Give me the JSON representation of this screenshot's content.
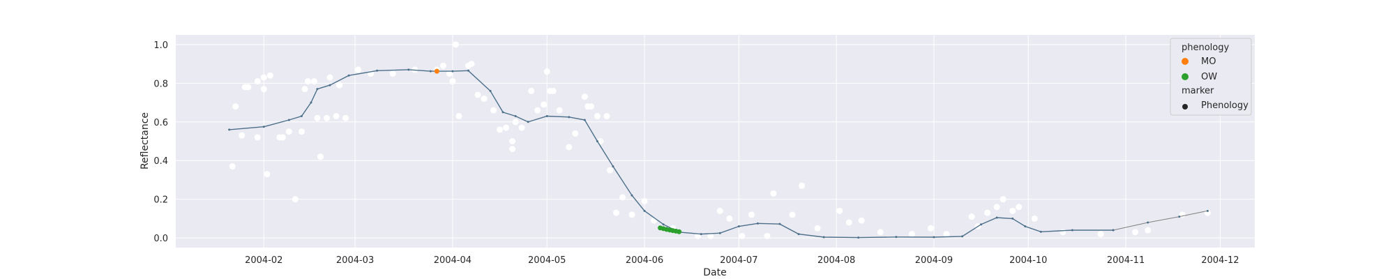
{
  "chart_data": {
    "type": "scatter",
    "title": "",
    "xlabel": "Date",
    "ylabel": "Reflectance",
    "x_is_date": true,
    "xlim": [
      "2004-01-04",
      "2004-12-12"
    ],
    "ylim": [
      -0.05,
      1.05
    ],
    "grid": true,
    "legend_position": "top-right",
    "colors": {
      "background": "#eaeaf2",
      "grid": "#ffffff",
      "smooth": "#4c6f8a",
      "line": "#7f7f7f",
      "observation": "#ffffff",
      "MO": "#ff7f0e",
      "OW": "#2ca02c",
      "marker": "#262626"
    },
    "x_ticks": [
      "2004-02-01",
      "2004-03-01",
      "2004-04-01",
      "2004-05-01",
      "2004-06-01",
      "2004-07-01",
      "2004-08-01",
      "2004-09-01",
      "2004-10-01",
      "2004-11-01",
      "2004-12-01"
    ],
    "x_tick_labels": [
      "2004-02",
      "2004-03",
      "2004-04",
      "2004-05",
      "2004-06",
      "2004-07",
      "2004-08",
      "2004-09",
      "2004-10",
      "2004-11",
      "2004-12"
    ],
    "y_ticks": [
      0.0,
      0.2,
      0.4,
      0.6,
      0.8,
      1.0
    ],
    "y_tick_labels": [
      "0.0",
      "0.2",
      "0.4",
      "0.6",
      "0.8",
      "1.0"
    ],
    "legend": {
      "title1": "phenology",
      "items1": [
        {
          "label": "MO",
          "color": "#ff7f0e"
        },
        {
          "label": "OW",
          "color": "#2ca02c"
        }
      ],
      "title2": "marker",
      "items2": [
        {
          "label": "Phenology",
          "color": "#262626"
        }
      ]
    },
    "smoothed_curve": {
      "x": [
        "2004-01-21",
        "2004-02-01",
        "2004-02-09",
        "2004-02-13",
        "2004-02-16",
        "2004-02-18",
        "2004-02-22",
        "2004-02-28",
        "2004-03-08",
        "2004-03-18",
        "2004-03-25",
        "2004-04-01",
        "2004-04-06",
        "2004-04-13",
        "2004-04-17",
        "2004-04-21",
        "2004-04-25",
        "2004-05-01",
        "2004-05-08",
        "2004-05-13",
        "2004-05-17",
        "2004-05-22",
        "2004-05-28",
        "2004-06-01",
        "2004-06-07",
        "2004-06-12",
        "2004-06-19",
        "2004-06-25",
        "2004-07-01",
        "2004-07-07",
        "2004-07-14",
        "2004-07-20",
        "2004-07-28",
        "2004-08-08",
        "2004-08-20",
        "2004-09-01",
        "2004-09-10",
        "2004-09-16",
        "2004-09-21",
        "2004-09-26",
        "2004-09-30",
        "2004-10-05",
        "2004-10-15",
        "2004-10-28"
      ],
      "y": [
        0.56,
        0.575,
        0.61,
        0.63,
        0.7,
        0.77,
        0.79,
        0.84,
        0.865,
        0.87,
        0.862,
        0.862,
        0.865,
        0.76,
        0.65,
        0.63,
        0.6,
        0.63,
        0.625,
        0.61,
        0.5,
        0.37,
        0.22,
        0.14,
        0.07,
        0.03,
        0.02,
        0.025,
        0.06,
        0.075,
        0.072,
        0.02,
        0.004,
        0.002,
        0.005,
        0.004,
        0.008,
        0.07,
        0.105,
        0.1,
        0.06,
        0.032,
        0.04,
        0.04
      ]
    },
    "sparse_line": {
      "x": [
        "2004-10-28",
        "2004-11-08",
        "2004-11-18",
        "2004-11-27"
      ],
      "y": [
        0.04,
        0.08,
        0.11,
        0.14
      ]
    },
    "observations": {
      "x": [
        "2004-01-22",
        "2004-01-23",
        "2004-01-25",
        "2004-01-26",
        "2004-01-27",
        "2004-01-30",
        "2004-01-30",
        "2004-02-01",
        "2004-02-01",
        "2004-02-02",
        "2004-02-03",
        "2004-02-06",
        "2004-02-07",
        "2004-02-09",
        "2004-02-11",
        "2004-02-13",
        "2004-02-14",
        "2004-02-15",
        "2004-02-17",
        "2004-02-18",
        "2004-02-19",
        "2004-02-21",
        "2004-02-22",
        "2004-02-24",
        "2004-02-25",
        "2004-02-27",
        "2004-03-02",
        "2004-03-06",
        "2004-03-13",
        "2004-03-20",
        "2004-03-27",
        "2004-03-29",
        "2004-03-31",
        "2004-04-01",
        "2004-04-02",
        "2004-04-03",
        "2004-04-06",
        "2004-04-07",
        "2004-04-09",
        "2004-04-11",
        "2004-04-14",
        "2004-04-16",
        "2004-04-18",
        "2004-04-20",
        "2004-04-20",
        "2004-04-21",
        "2004-04-23",
        "2004-04-26",
        "2004-04-28",
        "2004-04-30",
        "2004-05-01",
        "2004-05-02",
        "2004-05-03",
        "2004-05-05",
        "2004-05-08",
        "2004-05-10",
        "2004-05-13",
        "2004-05-14",
        "2004-05-15",
        "2004-05-17",
        "2004-05-18",
        "2004-05-20",
        "2004-05-21",
        "2004-05-23",
        "2004-05-25",
        "2004-05-28",
        "2004-06-01",
        "2004-06-04",
        "2004-06-10",
        "2004-06-18",
        "2004-06-22",
        "2004-06-25",
        "2004-06-28",
        "2004-07-02",
        "2004-07-05",
        "2004-07-10",
        "2004-07-12",
        "2004-07-18",
        "2004-07-21",
        "2004-07-26",
        "2004-08-02",
        "2004-08-05",
        "2004-08-09",
        "2004-08-15",
        "2004-08-25",
        "2004-08-31",
        "2004-09-05",
        "2004-09-13",
        "2004-09-15",
        "2004-09-18",
        "2004-09-21",
        "2004-09-23",
        "2004-09-26",
        "2004-09-28",
        "2004-10-03",
        "2004-10-12",
        "2004-10-24",
        "2004-11-04",
        "2004-11-08",
        "2004-11-19",
        "2004-11-27"
      ],
      "y": [
        0.37,
        0.68,
        0.53,
        0.78,
        0.78,
        0.52,
        0.81,
        0.77,
        0.83,
        0.33,
        0.84,
        0.52,
        0.52,
        0.55,
        0.2,
        0.55,
        0.77,
        0.81,
        0.81,
        0.62,
        0.42,
        0.62,
        0.83,
        0.63,
        0.79,
        0.62,
        0.87,
        0.85,
        0.85,
        0.87,
        0.87,
        0.89,
        0.85,
        0.81,
        1.0,
        0.63,
        0.89,
        0.9,
        0.74,
        0.72,
        0.66,
        0.56,
        0.57,
        0.5,
        0.46,
        0.6,
        0.57,
        0.76,
        0.66,
        0.69,
        0.86,
        0.76,
        0.76,
        0.66,
        0.47,
        0.54,
        0.73,
        0.68,
        0.68,
        0.63,
        0.5,
        0.63,
        0.35,
        0.13,
        0.21,
        0.12,
        0.19,
        0.09,
        0.05,
        0.01,
        0.01,
        0.14,
        0.1,
        0.01,
        0.12,
        0.01,
        0.23,
        0.12,
        0.27,
        0.05,
        0.14,
        0.08,
        0.09,
        0.03,
        0.02,
        0.05,
        0.02,
        0.11,
        0.06,
        0.13,
        0.16,
        0.2,
        0.14,
        0.16,
        0.1,
        0.03,
        0.02,
        0.03,
        0.04,
        0.12,
        0.13
      ]
    },
    "phenology_points": [
      {
        "phase": "MO",
        "x": [
          "2004-03-27"
        ],
        "y": [
          0.862
        ]
      },
      {
        "phase": "OW",
        "x": [
          "2004-06-06",
          "2004-06-07",
          "2004-06-08",
          "2004-06-09",
          "2004-06-10",
          "2004-06-11",
          "2004-06-12"
        ],
        "y": [
          0.052,
          0.048,
          0.044,
          0.041,
          0.038,
          0.035,
          0.032
        ]
      }
    ]
  }
}
